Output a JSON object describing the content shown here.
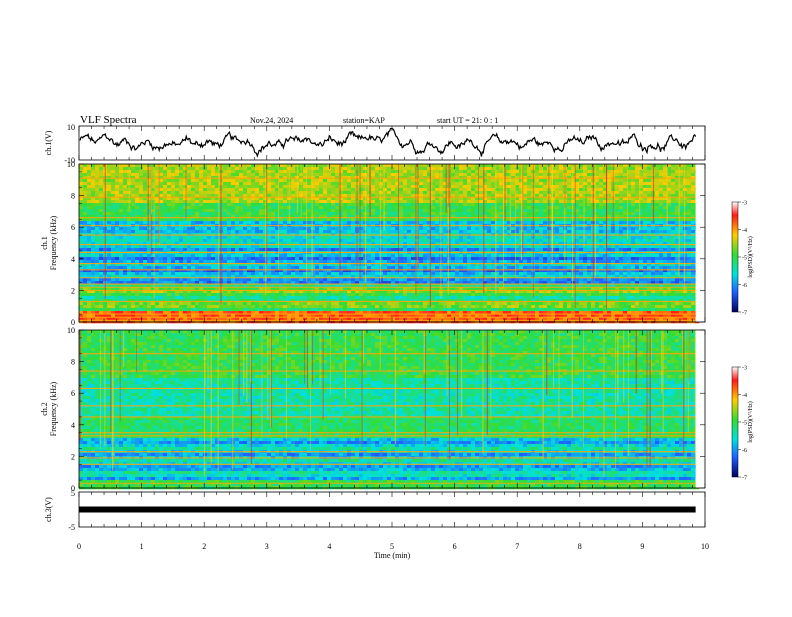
{
  "header": {
    "title": "VLF Spectra",
    "date": "Nov.24, 2024",
    "station": "station=KAP",
    "start_ut": "start UT =  21: 0  : 1"
  },
  "chart_data": [
    {
      "type": "line",
      "name": "ch1-waveform",
      "ylabel": "ch.1(V)",
      "ylim": [
        -10,
        10
      ],
      "ytick_labels": [
        "10",
        "-10"
      ],
      "xlim": [
        0,
        10
      ],
      "trace_end_min": 9.85
    },
    {
      "type": "heatmap",
      "name": "ch1-spectrogram",
      "ylabel": "ch.1\nFrequency (kHz)",
      "ylim": [
        0,
        10
      ],
      "yticks": [
        0,
        2,
        4,
        6,
        8,
        10
      ],
      "ytick_labels": [
        "0",
        "2",
        "4",
        "6",
        "8",
        "10"
      ],
      "xlim": [
        0,
        10
      ],
      "data_end_min": 9.85,
      "colorbar": {
        "label": "log(PSD)(V²/Hz)",
        "range": [
          -7,
          -3
        ],
        "ticks": [
          "-3",
          "-4",
          "-5",
          "-6",
          "-7"
        ]
      },
      "bands_khz": [
        0.1,
        0.3,
        0.5,
        1.3,
        2.0,
        2.2,
        2.4,
        2.8,
        3.3,
        3.7,
        4.4,
        4.9,
        5.5,
        6.1,
        6.6,
        7.9,
        9.1
      ]
    },
    {
      "type": "heatmap",
      "name": "ch2-spectrogram",
      "ylabel": "ch.2\nFrequency (kHz)",
      "ylim": [
        0,
        10
      ],
      "yticks": [
        0,
        2,
        4,
        6,
        8,
        10
      ],
      "ytick_labels": [
        "0",
        "2",
        "4",
        "6",
        "8",
        "10"
      ],
      "xlim": [
        0,
        10
      ],
      "data_end_min": 9.85,
      "colorbar": {
        "label": "log(PSD)(V²/Hz)",
        "range": [
          -7,
          -3
        ],
        "ticks": [
          "-3",
          "-4",
          "-5",
          "-6",
          "-7"
        ]
      },
      "bands_khz": [
        0.3,
        1.5,
        1.9,
        2.3,
        3.3,
        3.5,
        4.5,
        5.2,
        6.3,
        7.4,
        8.5
      ]
    },
    {
      "type": "line",
      "name": "ch3-waveform",
      "ylabel": "ch.3(V)",
      "ylim": [
        -5,
        5
      ],
      "ytick_labels": [
        "5",
        "-5"
      ],
      "xlim": [
        0,
        10
      ],
      "xlabel": "Time (min)",
      "xticks": [
        0,
        1,
        2,
        3,
        4,
        5,
        6,
        7,
        8,
        9,
        10
      ],
      "xtick_labels": [
        "0",
        "1",
        "2",
        "3",
        "4",
        "5",
        "6",
        "7",
        "8",
        "9",
        "10"
      ],
      "trace_level": 0,
      "trace_end_min": 9.85
    }
  ]
}
